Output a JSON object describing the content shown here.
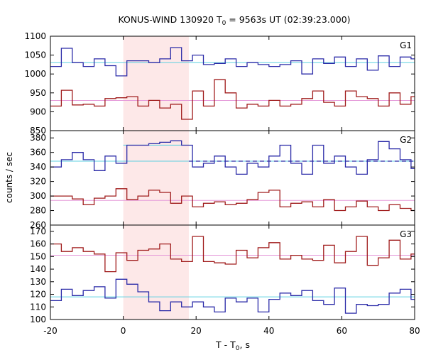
{
  "title": "KONUS-WIND 130920 T",
  "title_sub": "0",
  "title_tail": " = 9563s UT (02:39:23.000)",
  "xlabel_main": "T - T",
  "xlabel_sub": "0",
  "xlabel_tail": ", s",
  "ylabel": "counts / sec",
  "colors": {
    "blue": "#2b2ba8",
    "red": "#a01c1c",
    "cyan": "#5fd0e0",
    "pink": "#e59ad9",
    "shade": "#fde8e8"
  },
  "chart_data": [
    {
      "type": "line",
      "panel": "G1",
      "xlim": [
        -20,
        80
      ],
      "ylim": [
        850,
        1100
      ],
      "yticks": [
        850,
        900,
        950,
        1000,
        1050,
        1100
      ],
      "xticks": [
        -20,
        0,
        20,
        40,
        60,
        80
      ],
      "shade": [
        0,
        18
      ],
      "series": [
        {
          "color": "blue",
          "bin_edges": [
            -20,
            -17,
            -14,
            -11,
            -8,
            -5,
            -2,
            1,
            4,
            7,
            10,
            13,
            16,
            19,
            22,
            25,
            28,
            31,
            34,
            37,
            40,
            43,
            46,
            49,
            52,
            55,
            58,
            61,
            64,
            67,
            70,
            73,
            76,
            79,
            80
          ],
          "values": [
            1020,
            1068,
            1030,
            1020,
            1040,
            1022,
            995,
            1035,
            1035,
            1030,
            1040,
            1070,
            1035,
            1050,
            1025,
            1028,
            1040,
            1020,
            1030,
            1025,
            1020,
            1025,
            1035,
            1000,
            1040,
            1028,
            1045,
            1020,
            1040,
            1010,
            1048,
            1020,
            1045,
            1040
          ],
          "baseline": 1030,
          "baseline_color": "cyan"
        },
        {
          "color": "red",
          "bin_edges": [
            -20,
            -17,
            -14,
            -11,
            -8,
            -5,
            -2,
            1,
            4,
            7,
            10,
            13,
            16,
            19,
            22,
            25,
            28,
            31,
            34,
            37,
            40,
            43,
            46,
            49,
            52,
            55,
            58,
            61,
            64,
            67,
            70,
            73,
            76,
            79,
            80
          ],
          "values": [
            915,
            957,
            918,
            920,
            915,
            935,
            937,
            940,
            915,
            930,
            910,
            920,
            880,
            955,
            915,
            985,
            950,
            910,
            920,
            915,
            930,
            915,
            920,
            935,
            955,
            925,
            915,
            955,
            940,
            935,
            915,
            950,
            920,
            940
          ],
          "baseline": 930,
          "baseline_color": "pink"
        }
      ]
    },
    {
      "type": "line",
      "panel": "G2",
      "xlim": [
        -20,
        80
      ],
      "ylim": [
        260,
        390
      ],
      "yticks": [
        260,
        280,
        300,
        320,
        340,
        360,
        380
      ],
      "xticks": [
        -20,
        0,
        20,
        40,
        60,
        80
      ],
      "shade": [
        0,
        18
      ],
      "series": [
        {
          "color": "blue",
          "bin_edges": [
            -20,
            -17,
            -14,
            -11,
            -8,
            -5,
            -2,
            1,
            4,
            7,
            10,
            13,
            16,
            19,
            22,
            25,
            28,
            31,
            34,
            37,
            40,
            43,
            46,
            49,
            52,
            55,
            58,
            61,
            64,
            67,
            70,
            73,
            76,
            79,
            80
          ],
          "values": [
            340,
            350,
            360,
            350,
            335,
            355,
            345,
            370,
            370,
            372,
            374,
            376,
            370,
            340,
            345,
            355,
            340,
            330,
            345,
            340,
            355,
            370,
            345,
            330,
            370,
            345,
            355,
            340,
            330,
            350,
            375,
            365,
            350,
            338
          ],
          "baseline": 348,
          "baseline_color": "cyan",
          "dashed_from": 18,
          "dashed_to": 80,
          "flat_from": 0,
          "flat_to": 18,
          "flat_value": 370
        },
        {
          "color": "red",
          "bin_edges": [
            -20,
            -17,
            -14,
            -11,
            -8,
            -5,
            -2,
            1,
            4,
            7,
            10,
            13,
            16,
            19,
            22,
            25,
            28,
            31,
            34,
            37,
            40,
            43,
            46,
            49,
            52,
            55,
            58,
            61,
            64,
            67,
            70,
            73,
            76,
            79,
            80
          ],
          "values": [
            300,
            300,
            296,
            288,
            297,
            300,
            310,
            295,
            300,
            308,
            305,
            290,
            300,
            285,
            290,
            292,
            288,
            290,
            295,
            305,
            308,
            285,
            290,
            292,
            285,
            295,
            280,
            285,
            293,
            285,
            280,
            288,
            283,
            280
          ],
          "baseline": 294,
          "baseline_color": "pink"
        }
      ]
    },
    {
      "type": "line",
      "panel": "G3",
      "xlim": [
        -20,
        80
      ],
      "ylim": [
        100,
        175
      ],
      "yticks": [
        100,
        110,
        120,
        130,
        140,
        150,
        160,
        170
      ],
      "xticks": [
        -20,
        0,
        20,
        40,
        60,
        80
      ],
      "shade": [
        0,
        18
      ],
      "series": [
        {
          "color": "red",
          "bin_edges": [
            -20,
            -17,
            -14,
            -11,
            -8,
            -5,
            -2,
            1,
            4,
            7,
            10,
            13,
            16,
            19,
            22,
            25,
            28,
            31,
            34,
            37,
            40,
            43,
            46,
            49,
            52,
            55,
            58,
            61,
            64,
            67,
            70,
            73,
            76,
            79,
            80
          ],
          "values": [
            160,
            154,
            157,
            154,
            152,
            138,
            153,
            147,
            155,
            156,
            160,
            148,
            146,
            166,
            146,
            145,
            144,
            155,
            149,
            157,
            161,
            148,
            151,
            148,
            147,
            159,
            145,
            154,
            166,
            143,
            149,
            163,
            148,
            152
          ],
          "baseline": 151,
          "baseline_color": "pink"
        },
        {
          "color": "blue",
          "bin_edges": [
            -20,
            -17,
            -14,
            -11,
            -8,
            -5,
            -2,
            1,
            4,
            7,
            10,
            13,
            16,
            19,
            22,
            25,
            28,
            31,
            34,
            37,
            40,
            43,
            46,
            49,
            52,
            55,
            58,
            61,
            64,
            67,
            70,
            73,
            76,
            79,
            80
          ],
          "values": [
            115,
            124,
            119,
            123,
            126,
            117,
            132,
            128,
            122,
            114,
            107,
            114,
            110,
            114,
            110,
            106,
            117,
            114,
            117,
            106,
            116,
            121,
            119,
            123,
            115,
            112,
            125,
            105,
            112,
            111,
            112,
            121,
            124,
            116
          ],
          "baseline": 118,
          "baseline_color": "cyan"
        }
      ]
    }
  ],
  "panel_labels": [
    "G1",
    "G2",
    "G3"
  ]
}
